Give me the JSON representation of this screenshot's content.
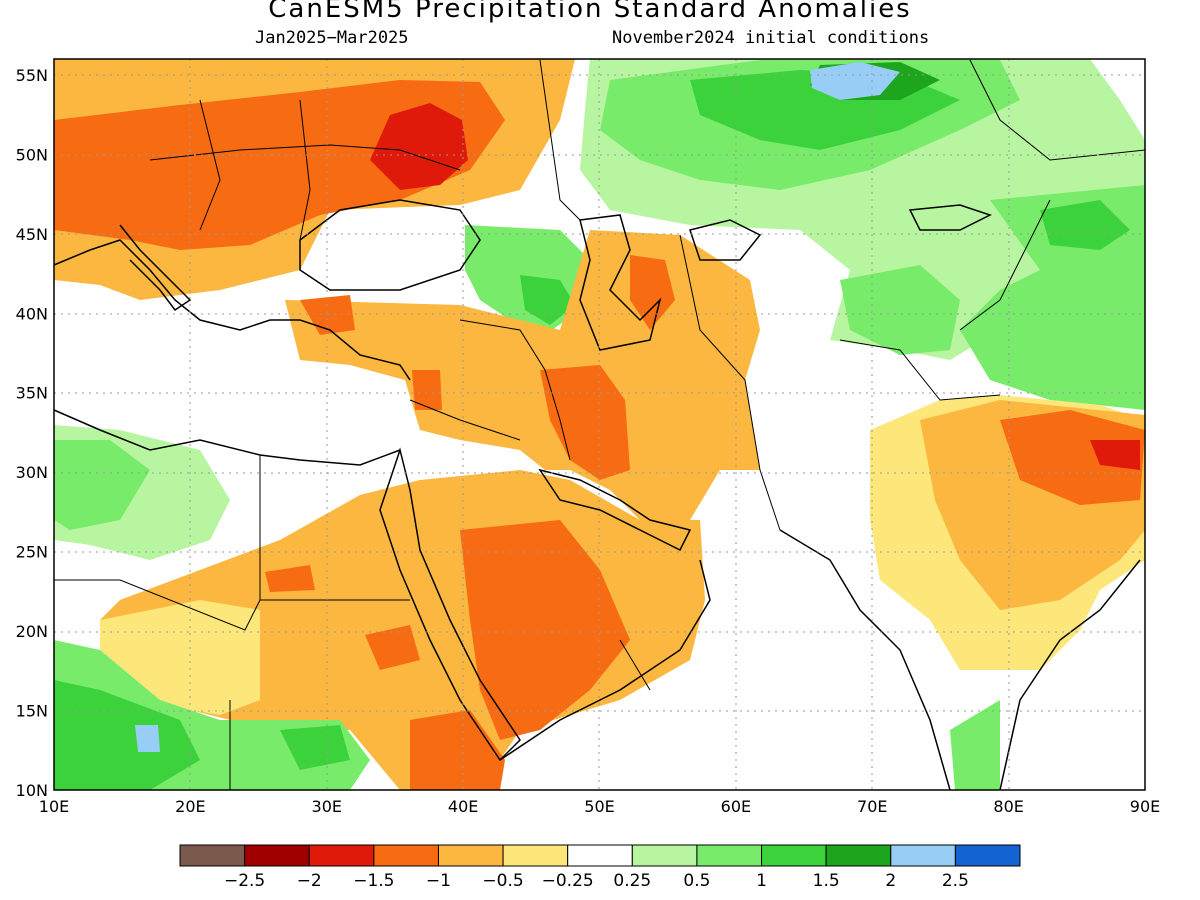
{
  "title": "CanESM5 Precipitation Standard Anomalies",
  "subtitle_left": "Jan2025−Mar2025",
  "subtitle_right": "November2024 initial conditions",
  "map": {
    "lon_range": [
      10,
      90
    ],
    "lat_range": [
      10,
      56
    ],
    "x_ticks": [
      "10E",
      "20E",
      "30E",
      "40E",
      "50E",
      "60E",
      "70E",
      "80E",
      "90E"
    ],
    "y_ticks": [
      "10N",
      "15N",
      "20N",
      "25N",
      "30N",
      "35N",
      "40N",
      "45N",
      "50N",
      "55N"
    ],
    "grid": "dotted"
  },
  "colorbar": {
    "colors": [
      "#7b5a4d",
      "#a00000",
      "#e01a0a",
      "#f76b12",
      "#fbb73f",
      "#fde77a",
      "#ffffff",
      "#b8f5a0",
      "#78ec6a",
      "#3bd23b",
      "#1ea51e",
      "#98cef5",
      "#1463d2"
    ],
    "labels": [
      "−2.5",
      "−2",
      "−1.5",
      "−1",
      "−0.5",
      "−0.25",
      "0.25",
      "0.5",
      "1",
      "1.5",
      "2",
      "2.5"
    ]
  }
}
